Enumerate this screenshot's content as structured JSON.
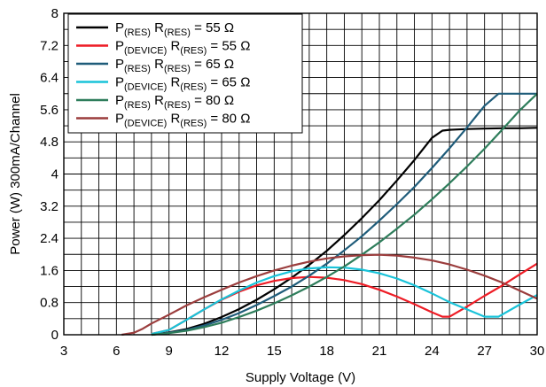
{
  "chart_data": {
    "type": "line",
    "xlabel": "Supply Voltage (V)",
    "ylabel": "Power (W) 300mA/Channel",
    "xlim": [
      3,
      30
    ],
    "ylim": [
      0,
      8
    ],
    "xticks": [
      "3",
      "6",
      "9",
      "12",
      "15",
      "18",
      "21",
      "24",
      "27",
      "30"
    ],
    "yticks": [
      "0",
      "0.8",
      "1.6",
      "2.4",
      "3.2",
      "4",
      "4.8",
      "5.6",
      "6.4",
      "7.2",
      "8"
    ],
    "x_minor_step": 1,
    "y_minor_step": 0.4,
    "grid": true,
    "legend_position": "top-left",
    "series": [
      {
        "name": "P(RES) R(RES) = 55 Ω",
        "label_parts": [
          [
            "P",
            ""
          ],
          [
            "(RES)",
            "sub"
          ],
          [
            " R",
            ""
          ],
          [
            "(RES)",
            "sub"
          ],
          [
            " = 55 Ω",
            ""
          ]
        ],
        "color": "#000000",
        "points": [
          [
            8,
            0.0
          ],
          [
            9,
            0.06
          ],
          [
            10,
            0.14
          ],
          [
            11,
            0.27
          ],
          [
            12,
            0.44
          ],
          [
            13,
            0.64
          ],
          [
            14,
            0.87
          ],
          [
            15,
            1.13
          ],
          [
            16,
            1.42
          ],
          [
            17,
            1.74
          ],
          [
            18,
            2.09
          ],
          [
            19,
            2.48
          ],
          [
            20,
            2.9
          ],
          [
            21,
            3.35
          ],
          [
            22,
            3.84
          ],
          [
            23,
            4.35
          ],
          [
            24,
            4.9
          ],
          [
            24.6,
            5.08
          ],
          [
            25,
            5.1
          ],
          [
            26,
            5.12
          ],
          [
            27,
            5.13
          ],
          [
            28,
            5.14
          ],
          [
            29,
            5.14
          ],
          [
            30,
            5.15
          ]
        ]
      },
      {
        "name": "P(DEVICE) R(RES) = 55 Ω",
        "label_parts": [
          [
            "P",
            ""
          ],
          [
            "(DEVICE)",
            "sub"
          ],
          [
            " R",
            ""
          ],
          [
            "(RES)",
            "sub"
          ],
          [
            " = 55 Ω",
            ""
          ]
        ],
        "color": "#ee1c25",
        "points": [
          [
            8,
            0.02
          ],
          [
            9,
            0.12
          ],
          [
            10,
            0.37
          ],
          [
            11,
            0.63
          ],
          [
            12,
            0.87
          ],
          [
            13,
            1.07
          ],
          [
            14,
            1.23
          ],
          [
            15,
            1.34
          ],
          [
            16,
            1.41
          ],
          [
            17,
            1.44
          ],
          [
            18,
            1.42
          ],
          [
            19,
            1.36
          ],
          [
            20,
            1.26
          ],
          [
            21,
            1.12
          ],
          [
            22,
            0.95
          ],
          [
            23,
            0.76
          ],
          [
            24,
            0.56
          ],
          [
            24.6,
            0.45
          ],
          [
            25,
            0.45
          ],
          [
            26,
            0.7
          ],
          [
            27,
            0.97
          ],
          [
            28,
            1.22
          ],
          [
            29,
            1.5
          ],
          [
            30,
            1.77
          ]
        ]
      },
      {
        "name": "P(RES) R(RES) = 65 Ω",
        "label_parts": [
          [
            "P",
            ""
          ],
          [
            "(RES)",
            "sub"
          ],
          [
            " R",
            ""
          ],
          [
            "(RES)",
            "sub"
          ],
          [
            " = 65 Ω",
            ""
          ]
        ],
        "color": "#1f5c7a",
        "points": [
          [
            8,
            0.0
          ],
          [
            9,
            0.05
          ],
          [
            10,
            0.12
          ],
          [
            11,
            0.23
          ],
          [
            12,
            0.37
          ],
          [
            13,
            0.54
          ],
          [
            14,
            0.74
          ],
          [
            15,
            0.96
          ],
          [
            16,
            1.2
          ],
          [
            17,
            1.47
          ],
          [
            18,
            1.77
          ],
          [
            19,
            2.1
          ],
          [
            20,
            2.45
          ],
          [
            21,
            2.84
          ],
          [
            22,
            3.25
          ],
          [
            23,
            3.68
          ],
          [
            24,
            4.15
          ],
          [
            25,
            4.64
          ],
          [
            26,
            5.16
          ],
          [
            27,
            5.7
          ],
          [
            27.8,
            6.0
          ],
          [
            28,
            6.0
          ],
          [
            29,
            6.0
          ],
          [
            30,
            6.0
          ]
        ]
      },
      {
        "name": "P(DEVICE) R(RES) = 65 Ω",
        "label_parts": [
          [
            "P",
            ""
          ],
          [
            "(DEVICE)",
            "sub"
          ],
          [
            " R",
            ""
          ],
          [
            "(RES)",
            "sub"
          ],
          [
            " = 65 Ω",
            ""
          ]
        ],
        "color": "#19c3d9",
        "points": [
          [
            8,
            0.02
          ],
          [
            9,
            0.12
          ],
          [
            10,
            0.37
          ],
          [
            11,
            0.63
          ],
          [
            12,
            0.88
          ],
          [
            13,
            1.1
          ],
          [
            14,
            1.3
          ],
          [
            15,
            1.46
          ],
          [
            16,
            1.58
          ],
          [
            17,
            1.65
          ],
          [
            18,
            1.68
          ],
          [
            19,
            1.67
          ],
          [
            20,
            1.62
          ],
          [
            21,
            1.53
          ],
          [
            22,
            1.4
          ],
          [
            23,
            1.23
          ],
          [
            24,
            1.03
          ],
          [
            25,
            0.81
          ],
          [
            26,
            0.63
          ],
          [
            27,
            0.45
          ],
          [
            27.8,
            0.45
          ],
          [
            28,
            0.5
          ],
          [
            29,
            0.75
          ],
          [
            30,
            0.99
          ]
        ]
      },
      {
        "name": "P(RES) R(RES) = 80 Ω",
        "label_parts": [
          [
            "P",
            ""
          ],
          [
            "(RES)",
            "sub"
          ],
          [
            " R",
            ""
          ],
          [
            "(RES)",
            "sub"
          ],
          [
            " = 80 Ω",
            ""
          ]
        ],
        "color": "#2e7d5b",
        "points": [
          [
            8,
            0.0
          ],
          [
            9,
            0.04
          ],
          [
            10,
            0.1
          ],
          [
            11,
            0.19
          ],
          [
            12,
            0.3
          ],
          [
            13,
            0.44
          ],
          [
            14,
            0.6
          ],
          [
            15,
            0.78
          ],
          [
            16,
            0.98
          ],
          [
            17,
            1.2
          ],
          [
            18,
            1.44
          ],
          [
            19,
            1.7
          ],
          [
            20,
            1.99
          ],
          [
            21,
            2.3
          ],
          [
            22,
            2.64
          ],
          [
            23,
            2.99
          ],
          [
            24,
            3.37
          ],
          [
            25,
            3.77
          ],
          [
            26,
            4.19
          ],
          [
            27,
            4.63
          ],
          [
            28,
            5.1
          ],
          [
            29,
            5.58
          ],
          [
            30,
            6.0
          ]
        ]
      },
      {
        "name": "P(DEVICE) R(RES) = 80 Ω",
        "label_parts": [
          [
            "P",
            ""
          ],
          [
            "(DEVICE)",
            "sub"
          ],
          [
            " R",
            ""
          ],
          [
            "(RES)",
            "sub"
          ],
          [
            " = 80 Ω",
            ""
          ]
        ],
        "color": "#9b3d3d",
        "points": [
          [
            6.3,
            0.0
          ],
          [
            7,
            0.05
          ],
          [
            7.5,
            0.15
          ],
          [
            8,
            0.28
          ],
          [
            9,
            0.5
          ],
          [
            10,
            0.73
          ],
          [
            11,
            0.93
          ],
          [
            12,
            1.12
          ],
          [
            13,
            1.3
          ],
          [
            14,
            1.46
          ],
          [
            15,
            1.6
          ],
          [
            16,
            1.72
          ],
          [
            17,
            1.82
          ],
          [
            18,
            1.9
          ],
          [
            19,
            1.95
          ],
          [
            20,
            1.98
          ],
          [
            21,
            1.99
          ],
          [
            22,
            1.97
          ],
          [
            23,
            1.92
          ],
          [
            24,
            1.85
          ],
          [
            25,
            1.75
          ],
          [
            26,
            1.62
          ],
          [
            27,
            1.47
          ],
          [
            28,
            1.3
          ],
          [
            29,
            1.1
          ],
          [
            30,
            0.9
          ]
        ]
      }
    ]
  }
}
